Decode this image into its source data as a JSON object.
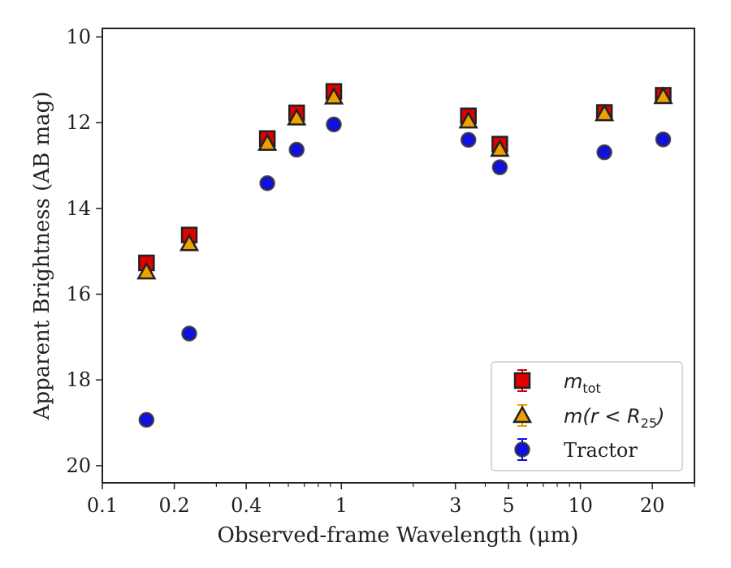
{
  "chart_data": {
    "type": "scatter",
    "x_scale": "log",
    "y_inverted": true,
    "xlim": [
      0.1,
      30
    ],
    "ylim": [
      20.4,
      9.8
    ],
    "xlabel": "Observed-frame Wavelength (μm)",
    "ylabel": "Apparent Brightness (AB mag)",
    "x_ticks": [
      {
        "value": 0.1,
        "label": "0.1"
      },
      {
        "value": 0.2,
        "label": "0.2"
      },
      {
        "value": 0.4,
        "label": "0.4"
      },
      {
        "value": 1,
        "label": "1"
      },
      {
        "value": 3,
        "label": "3"
      },
      {
        "value": 5,
        "label": "5"
      },
      {
        "value": 10,
        "label": "10"
      },
      {
        "value": 20,
        "label": "20"
      }
    ],
    "y_ticks": [
      {
        "value": 10,
        "label": "10"
      },
      {
        "value": 12,
        "label": "12"
      },
      {
        "value": 14,
        "label": "14"
      },
      {
        "value": 16,
        "label": "16"
      },
      {
        "value": 18,
        "label": "18"
      },
      {
        "value": 20,
        "label": "20"
      }
    ],
    "legend_position": "lower-right",
    "series": [
      {
        "id": "mtot",
        "legend_main": "m",
        "legend_sub": "tot",
        "legend_tail": "",
        "marker": "square",
        "color": "#e00000",
        "edge_color": "#222222",
        "error_color": "#e00000",
        "x": [
          0.153,
          0.231,
          0.49,
          0.65,
          0.93,
          3.4,
          4.6,
          12.6,
          22.2
        ],
        "y": [
          15.27,
          14.62,
          12.37,
          11.77,
          11.27,
          11.84,
          12.5,
          11.76,
          11.36
        ]
      },
      {
        "id": "mr25",
        "legend_main": "m(r < R",
        "legend_sub": "25",
        "legend_tail": ")",
        "marker": "triangle",
        "color": "#f0a000",
        "edge_color": "#222222",
        "error_color": "#f0a000",
        "x": [
          0.153,
          0.231,
          0.49,
          0.65,
          0.93,
          3.4,
          4.6,
          12.6,
          22.2
        ],
        "y": [
          15.48,
          14.82,
          12.48,
          11.89,
          11.4,
          11.96,
          12.62,
          11.79,
          11.39
        ]
      },
      {
        "id": "tractor",
        "legend_main": "Tractor",
        "legend_sub": "",
        "legend_tail": "",
        "marker": "circle",
        "color": "#1010e0",
        "edge_color": "#333333",
        "error_color": "#1010e0",
        "x": [
          0.153,
          0.231,
          0.49,
          0.65,
          0.93,
          3.4,
          4.6,
          12.6,
          22.2
        ],
        "y": [
          18.93,
          16.92,
          13.41,
          12.63,
          12.04,
          12.4,
          13.04,
          12.69,
          12.39
        ]
      }
    ]
  }
}
